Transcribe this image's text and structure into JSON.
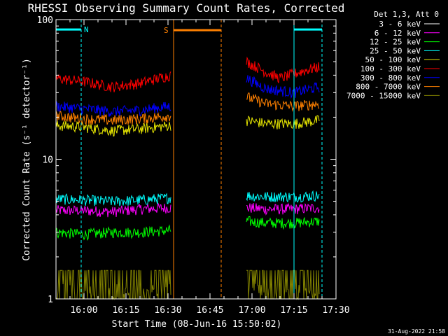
{
  "chart_data": {
    "type": "line",
    "title": "RHESSI Observing Summary Count Rates, Corrected",
    "ylabel": "Corrected Count Rate (s⁻¹ detector⁻¹)",
    "xlabel": "Start Time (08-Jun-16 15:50:02)",
    "y_scale": "log",
    "ylim": [
      1,
      100
    ],
    "xlim": [
      "15:50",
      "17:30"
    ],
    "x_ticks": [
      "16:00",
      "16:15",
      "16:30",
      "16:45",
      "17:00",
      "17:15",
      "17:30"
    ],
    "y_ticks": [
      "1",
      "10",
      "100"
    ],
    "legend_title": "Det 1,3, Att 0",
    "legend_position": "right",
    "series": [
      {
        "name": "3 - 6 keV",
        "color": "#ffffff",
        "segments": []
      },
      {
        "name": "6 - 12 keV",
        "color": "#ff00ff",
        "segments": [
          {
            "x": [
              "15:50",
              "16:00",
              "16:10",
              "16:20",
              "16:31"
            ],
            "y": [
              4.3,
              4.3,
              4.2,
              4.4,
              4.5
            ]
          },
          {
            "x": [
              "16:58",
              "17:05",
              "17:15",
              "17:24"
            ],
            "y": [
              4.5,
              4.4,
              4.4,
              4.5
            ]
          }
        ]
      },
      {
        "name": "12 - 25 keV",
        "color": "#00ff00",
        "segments": [
          {
            "x": [
              "15:50",
              "16:00",
              "16:10",
              "16:20",
              "16:31"
            ],
            "y": [
              3.0,
              2.9,
              3.0,
              3.0,
              3.1
            ]
          },
          {
            "x": [
              "16:58",
              "17:05",
              "17:15",
              "17:24"
            ],
            "y": [
              3.6,
              3.5,
              3.5,
              3.6
            ]
          }
        ]
      },
      {
        "name": "25 - 50 keV",
        "color": "#00ffff",
        "segments": [
          {
            "x": [
              "15:50",
              "16:00",
              "16:10",
              "16:20",
              "16:31"
            ],
            "y": [
              5.2,
              5.1,
              5.0,
              5.1,
              5.3
            ]
          },
          {
            "x": [
              "16:58",
              "17:05",
              "17:15",
              "17:24"
            ],
            "y": [
              5.5,
              5.4,
              5.4,
              5.5
            ]
          }
        ]
      },
      {
        "name": "50 - 100 keV",
        "color": "#e6e600",
        "segments": [
          {
            "x": [
              "15:50",
              "16:00",
              "16:10",
              "16:20",
              "16:31"
            ],
            "y": [
              17.5,
              17.0,
              16.0,
              16.5,
              17.5
            ]
          },
          {
            "x": [
              "16:58",
              "17:05",
              "17:15",
              "17:24"
            ],
            "y": [
              19.0,
              18.0,
              18.0,
              19.0
            ]
          }
        ]
      },
      {
        "name": "100 - 300 keV",
        "color": "#ff0000",
        "segments": [
          {
            "x": [
              "15:50",
              "16:00",
              "16:10",
              "16:20",
              "16:31"
            ],
            "y": [
              38,
              36,
              33,
              35,
              40
            ]
          },
          {
            "x": [
              "16:58",
              "17:05",
              "17:10",
              "17:15",
              "17:24"
            ],
            "y": [
              50,
              42,
              38,
              41,
              46
            ]
          }
        ]
      },
      {
        "name": "300 - 800 keV",
        "color": "#0000ff",
        "segments": [
          {
            "x": [
              "15:50",
              "16:00",
              "16:10",
              "16:20",
              "16:31"
            ],
            "y": [
              24,
              23,
              22,
              22.5,
              24
            ]
          },
          {
            "x": [
              "16:58",
              "17:05",
              "17:15",
              "17:24"
            ],
            "y": [
              38,
              32,
              30,
              33
            ]
          }
        ]
      },
      {
        "name": "800 - 7000 keV",
        "color": "#ff8000",
        "segments": [
          {
            "x": [
              "15:50",
              "16:00",
              "16:10",
              "16:20",
              "16:31"
            ],
            "y": [
              20.5,
              19.5,
              19.0,
              19.5,
              20.5
            ]
          },
          {
            "x": [
              "16:58",
              "17:05",
              "17:15",
              "17:24"
            ],
            "y": [
              28,
              25,
              24,
              25
            ]
          }
        ]
      },
      {
        "name": "7000 - 15000 keV",
        "color": "#808000",
        "segments": [
          {
            "x": [
              "15:50",
              "16:00",
              "16:10",
              "16:20",
              "16:31"
            ],
            "y": [
              1.6,
              1.6,
              1.6,
              1.6,
              1.6
            ]
          },
          {
            "x": [
              "16:58",
              "17:05",
              "17:15",
              "17:24"
            ],
            "y": [
              1.6,
              1.6,
              1.6,
              1.6
            ]
          }
        ]
      }
    ],
    "annotations": [
      {
        "label": "N",
        "color": "#00ffff",
        "bar": [
          "15:50",
          "15:59"
        ],
        "bar_y": 85,
        "start": "15:50",
        "end": "15:59"
      },
      {
        "label": "S",
        "color": "#ff8000",
        "bar": [
          "16:32",
          "16:49"
        ],
        "bar_y": 84,
        "start": "16:32",
        "end": "16:49"
      },
      {
        "label": "",
        "color": "#00ffff",
        "bar": [
          "17:15",
          "17:25"
        ],
        "bar_y": 85,
        "start": "17:15",
        "end": "17:25"
      }
    ]
  },
  "footer": {
    "timestamp": "31-Aug-2022 21:58"
  }
}
